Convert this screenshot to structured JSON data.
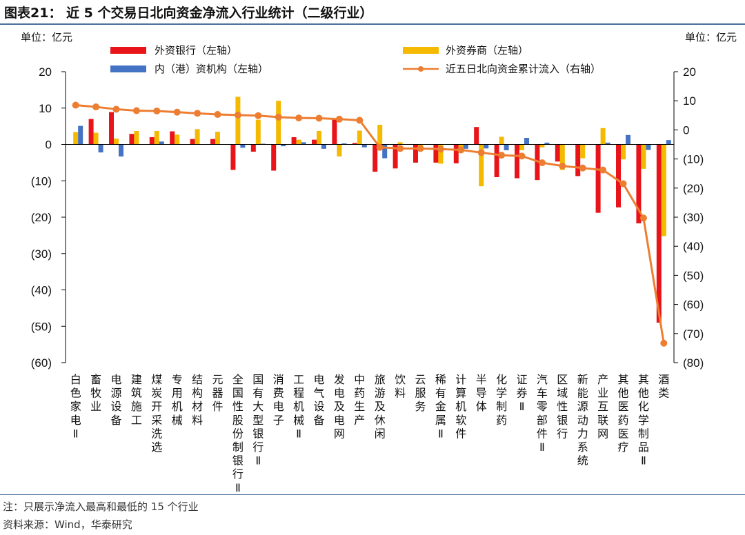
{
  "figure": {
    "title": "图表21：  近 5 个交易日北向资金净流入行业统计（二级行业）",
    "note": "注：只展示净流入最高和最低的 15 个行业",
    "source": "资料来源：Wind，华泰研究"
  },
  "chart_data": {
    "type": "bar",
    "left_unit": "单位：亿元",
    "right_unit": "单位：亿元",
    "ylim_left": [
      -60,
      20
    ],
    "ylim_right": [
      -80,
      20
    ],
    "left_ticks": [
      "20",
      "10",
      "0",
      "(10)",
      "(20)",
      "(30)",
      "(40)",
      "(50)",
      "(60)"
    ],
    "right_ticks": [
      "20",
      "10",
      "0",
      "(10)",
      "(20)",
      "(30)",
      "(40)",
      "(50)",
      "(60)",
      "(70)",
      "(80)"
    ],
    "categories": [
      "白色家电Ⅱ",
      "畜牧业",
      "电源设备",
      "建筑施工",
      "煤炭开采洗选",
      "专用机械",
      "结构材料",
      "元器件",
      "全国性股份制银行Ⅱ",
      "国有大型银行Ⅱ",
      "消费电子",
      "工程机械Ⅱ",
      "电气设备",
      "发电及电网",
      "中药生产",
      "旅游及休闲",
      "饮料",
      "云服务",
      "稀有金属Ⅱ",
      "计算机软件",
      "半导体",
      "化学制药",
      "证券Ⅱ",
      "汽车零部件Ⅱ",
      "区域性银行",
      "新能源动力系统",
      "产业互联网",
      "其他医药医疗",
      "其他化学制品Ⅱ",
      "酒类"
    ],
    "series": [
      {
        "name": "外资银行（左轴）",
        "color": "#e8141a",
        "axis": "left",
        "values": [
          0.1,
          7.0,
          8.9,
          2.9,
          2.0,
          3.6,
          1.5,
          1.5,
          -7.0,
          -2.0,
          -7.2,
          2.0,
          1.3,
          7.0,
          0.4,
          -7.5,
          -6.6,
          -5.0,
          -5.0,
          -5.2,
          4.8,
          -9.0,
          -9.3,
          -9.8,
          -4.7,
          -8.7,
          -18.8,
          -17.3,
          -21.7,
          -49.0
        ]
      },
      {
        "name": "外资券商（左轴）",
        "color": "#f5b900",
        "axis": "left",
        "values": [
          3.4,
          3.2,
          1.6,
          3.7,
          3.7,
          2.7,
          4.2,
          3.5,
          13.1,
          6.8,
          12.0,
          1.3,
          3.7,
          -3.3,
          3.8,
          5.4,
          0.6,
          -0.4,
          -5.3,
          -2.3,
          -11.5,
          2.1,
          -1.6,
          -0.8,
          -7.0,
          -3.8,
          4.5,
          -4.1,
          -6.7,
          -25.2
        ]
      },
      {
        "name": "内（港）资机构（左轴）",
        "color": "#4472c4",
        "axis": "left",
        "values": [
          5.1,
          -2.2,
          -3.3,
          0.0,
          0.8,
          0.0,
          0.0,
          0.0,
          -0.9,
          0.2,
          -0.5,
          0.6,
          -1.2,
          0.3,
          -0.8,
          -3.8,
          0.0,
          0.0,
          0.0,
          -1.2,
          -1.1,
          -1.6,
          1.8,
          0.5,
          0.0,
          0.0,
          0.5,
          2.6,
          -1.5,
          1.2
        ]
      },
      {
        "name": "近五日北向资金累计流入（右轴）",
        "color": "#ed7d31",
        "axis": "right",
        "values": [
          8.5,
          7.9,
          7.1,
          6.6,
          6.5,
          6.1,
          5.7,
          5.3,
          5.1,
          4.9,
          4.4,
          4.1,
          4.0,
          3.7,
          3.3,
          -6.0,
          -6.4,
          -6.4,
          -6.6,
          -6.9,
          -7.8,
          -8.7,
          -9.0,
          -11.3,
          -12.4,
          -13.1,
          -13.8,
          -18.5,
          -30.3,
          -73.3
        ]
      }
    ]
  }
}
